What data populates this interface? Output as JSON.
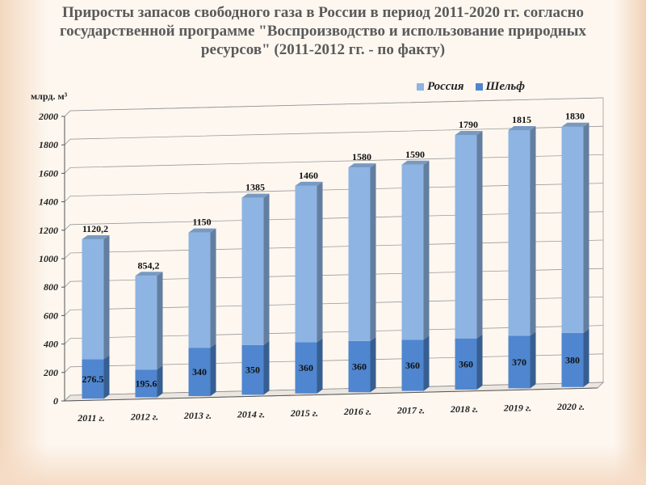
{
  "title": "Приросты запасов свободного газа в России в период 2011-2020 гг. согласно государственной программе \"Воспроизводство и использование природных ресурсов\" (2011-2012 гг. - по факту)",
  "chart_data": {
    "type": "bar",
    "stacked": true,
    "categories": [
      "2011 г.",
      "2012 г.",
      "2013 г.",
      "2014 г.",
      "2015 г.",
      "2016 г.",
      "2017 г.",
      "2018 г.",
      "2019 г.",
      "2020 г."
    ],
    "series": [
      {
        "name": "Шельф",
        "color": "#4f86cf",
        "values": [
          276.5,
          195.6,
          340,
          350,
          360,
          360,
          360,
          360,
          370,
          380
        ],
        "labels": [
          "276.5",
          "195.6",
          "340",
          "350",
          "360",
          "360",
          "360",
          "360",
          "370",
          "380"
        ]
      },
      {
        "name": "Россия",
        "color": "#8db4e3",
        "values": [
          843.7,
          658.6,
          810,
          1035,
          1100,
          1220,
          1230,
          1430,
          1445,
          1450
        ]
      }
    ],
    "totals": [
      1120.2,
      854.2,
      1150,
      1385,
      1460,
      1580,
      1590,
      1790,
      1815,
      1830
    ],
    "total_labels": [
      "1120,2",
      "854,2",
      "1150",
      "1385",
      "1460",
      "1580",
      "1590",
      "1790",
      "1815",
      "1830"
    ],
    "ylabel": "млрд. м³",
    "ylim": [
      0,
      2000
    ],
    "yticks": [
      0,
      200,
      400,
      600,
      800,
      1000,
      1200,
      1400,
      1600,
      1800,
      2000
    ],
    "legend_order": [
      "Россия",
      "Шельф"
    ],
    "legend_position": "top-right",
    "grid": true
  }
}
